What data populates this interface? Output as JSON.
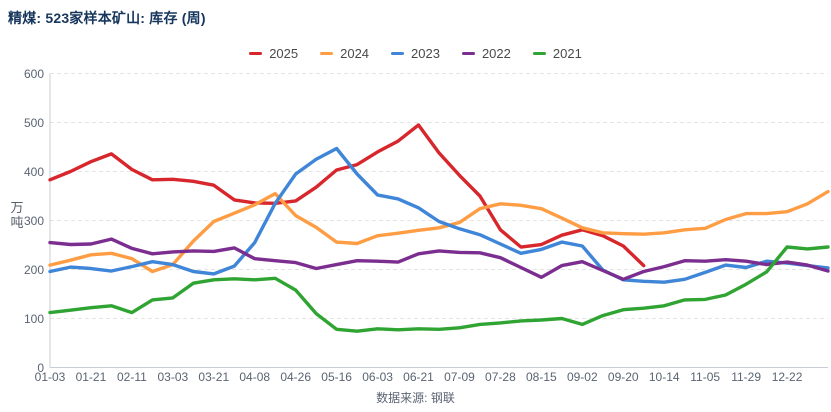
{
  "header": {
    "title": "精煤: 523家样本矿山: 库存 (周)"
  },
  "footer": {
    "source_label": "数据来源: 钢联"
  },
  "chart_data": {
    "type": "line",
    "title": "精煤: 523家样本矿山: 库存 (周)",
    "ylabel": "万吨",
    "ylim": [
      0,
      600
    ],
    "yticks": [
      0,
      100,
      200,
      300,
      400,
      500,
      600
    ],
    "grid": "dashed-horizontal",
    "legend_position": "top-center",
    "x_tick_labels": [
      "01-03",
      "01-21",
      "02-11",
      "03-03",
      "03-21",
      "04-08",
      "04-26",
      "05-16",
      "06-03",
      "06-21",
      "07-09",
      "07-28",
      "08-15",
      "09-02",
      "09-20",
      "10-14",
      "11-05",
      "11-29",
      "12-22"
    ],
    "x_slots_total": 39,
    "tick_every_slots": 2,
    "series": [
      {
        "name": "2025",
        "color": "#d7262c",
        "values": [
          383,
          400,
          420,
          436,
          404,
          383,
          384,
          380,
          372,
          342,
          336,
          335,
          340,
          368,
          403,
          414,
          440,
          462,
          495,
          438,
          392,
          350,
          281,
          246,
          251,
          270,
          281,
          269,
          248,
          208
        ]
      },
      {
        "name": "2024",
        "color": "#ff9d45",
        "values": [
          209,
          219,
          230,
          233,
          222,
          196,
          210,
          258,
          298,
          315,
          332,
          355,
          310,
          286,
          256,
          253,
          269,
          274,
          280,
          285,
          296,
          324,
          334,
          331,
          324,
          305,
          285,
          275,
          273,
          272,
          275,
          281,
          284,
          302,
          314,
          314,
          318,
          334,
          359
        ]
      },
      {
        "name": "2023",
        "color": "#3f86d8",
        "values": [
          196,
          205,
          202,
          197,
          206,
          216,
          210,
          196,
          191,
          207,
          255,
          335,
          395,
          425,
          447,
          395,
          352,
          344,
          326,
          298,
          283,
          271,
          252,
          233,
          241,
          256,
          248,
          199,
          179,
          176,
          174,
          180,
          194,
          209,
          204,
          217,
          213,
          208,
          203
        ]
      },
      {
        "name": "2022",
        "color": "#7b2e8f",
        "values": [
          255,
          251,
          252,
          262,
          243,
          232,
          236,
          238,
          237,
          244,
          222,
          218,
          214,
          202,
          210,
          218,
          217,
          215,
          232,
          238,
          235,
          234,
          224,
          204,
          184,
          208,
          216,
          198,
          180,
          196,
          206,
          218,
          217,
          220,
          217,
          210,
          215,
          209,
          197
        ]
      },
      {
        "name": "2021",
        "color": "#2fa432",
        "values": [
          112,
          117,
          122,
          126,
          112,
          138,
          142,
          172,
          179,
          181,
          179,
          182,
          158,
          110,
          78,
          74,
          79,
          77,
          79,
          78,
          81,
          88,
          91,
          95,
          97,
          100,
          88,
          106,
          118,
          121,
          126,
          138,
          139,
          148,
          170,
          195,
          246,
          242,
          246
        ]
      }
    ]
  },
  "layout_colors": {
    "grid": "#e4e4e4",
    "axis": "#c9ced6",
    "tick_text": "#5a6472",
    "title_text": "#17365d"
  }
}
